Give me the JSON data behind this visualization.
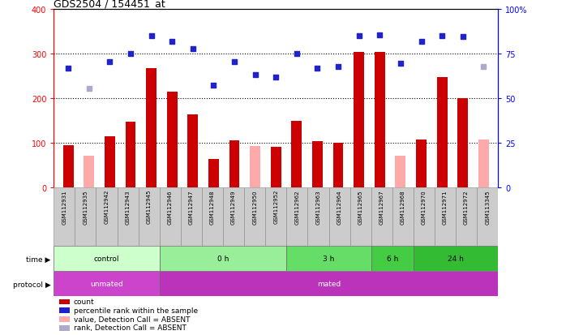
{
  "title": "GDS2504 / 154451_at",
  "samples": [
    "GSM112931",
    "GSM112935",
    "GSM112942",
    "GSM112943",
    "GSM112945",
    "GSM112946",
    "GSM112947",
    "GSM112948",
    "GSM112949",
    "GSM112950",
    "GSM112952",
    "GSM112962",
    "GSM112963",
    "GSM112964",
    "GSM112965",
    "GSM112967",
    "GSM112968",
    "GSM112970",
    "GSM112971",
    "GSM112972",
    "GSM113345"
  ],
  "bar_values": [
    95,
    70,
    115,
    148,
    268,
    215,
    163,
    63,
    105,
    93,
    90,
    150,
    103,
    100,
    305,
    305,
    70,
    107,
    248,
    200,
    108
  ],
  "bar_absent": [
    false,
    true,
    false,
    false,
    false,
    false,
    false,
    false,
    false,
    true,
    false,
    false,
    false,
    false,
    false,
    false,
    true,
    false,
    false,
    false,
    true
  ],
  "blue_values": [
    268,
    222,
    283,
    300,
    340,
    328,
    312,
    230,
    283,
    253,
    248,
    300,
    268,
    272,
    340,
    342,
    278,
    328,
    340,
    338,
    272
  ],
  "blue_absent": [
    false,
    true,
    false,
    false,
    false,
    false,
    false,
    false,
    false,
    false,
    false,
    false,
    false,
    false,
    false,
    false,
    false,
    false,
    false,
    false,
    true
  ],
  "bar_color": "#cc0000",
  "absent_bar_color": "#ffaaaa",
  "blue_color": "#2222cc",
  "absent_blue_color": "#aaaacc",
  "ylim_left": [
    0,
    400
  ],
  "grid_values": [
    100,
    200,
    300
  ],
  "groups": [
    {
      "label": "control",
      "start": 0,
      "end": 5,
      "color": "#ccffcc"
    },
    {
      "label": "0 h",
      "start": 5,
      "end": 11,
      "color": "#99ee99"
    },
    {
      "label": "3 h",
      "start": 11,
      "end": 15,
      "color": "#66dd66"
    },
    {
      "label": "6 h",
      "start": 15,
      "end": 17,
      "color": "#44cc44"
    },
    {
      "label": "24 h",
      "start": 17,
      "end": 21,
      "color": "#33bb33"
    }
  ],
  "protocol_groups": [
    {
      "label": "unmated",
      "start": 0,
      "end": 5,
      "color": "#cc44cc"
    },
    {
      "label": "mated",
      "start": 5,
      "end": 21,
      "color": "#bb33bb"
    }
  ],
  "legend_items": [
    {
      "label": "count",
      "color": "#cc0000"
    },
    {
      "label": "percentile rank within the sample",
      "color": "#2222cc"
    },
    {
      "label": "value, Detection Call = ABSENT",
      "color": "#ffaaaa"
    },
    {
      "label": "rank, Detection Call = ABSENT",
      "color": "#aaaacc"
    }
  ],
  "bar_width": 0.5
}
